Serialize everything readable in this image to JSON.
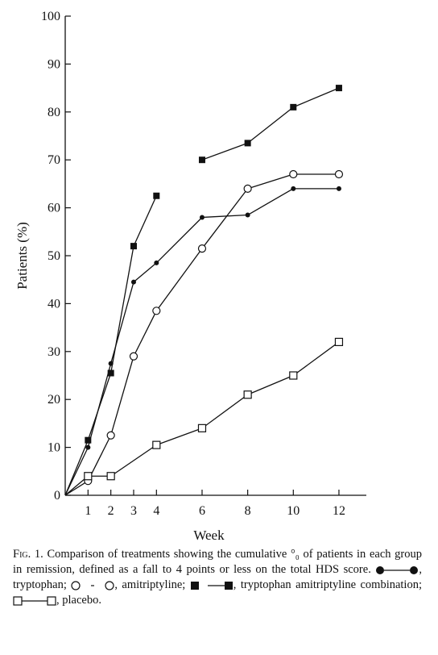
{
  "chart_data": {
    "type": "line",
    "title": "",
    "xlabel": "Week",
    "ylabel": "Patients (%)",
    "xlim": [
      0,
      13.2
    ],
    "ylim": [
      0,
      100
    ],
    "xticks": [
      1,
      2,
      3,
      4,
      6,
      8,
      10,
      12
    ],
    "yticks": [
      0,
      10,
      20,
      30,
      40,
      50,
      60,
      70,
      80,
      90,
      100
    ],
    "grid": false,
    "series": [
      {
        "name": "tryptophan",
        "marker": "filled-circle",
        "color": "#111111",
        "x": [
          0,
          1,
          2,
          3,
          4,
          6,
          8,
          10,
          12
        ],
        "y": [
          0,
          10,
          27.5,
          44.5,
          48.5,
          58,
          58.5,
          64,
          64
        ]
      },
      {
        "name": "amitriptyline",
        "marker": "open-circle",
        "color": "#111111",
        "x": [
          0,
          1,
          2,
          3,
          4,
          6,
          8,
          10,
          12
        ],
        "y": [
          0,
          3,
          12.5,
          29,
          38.5,
          51.5,
          64,
          67,
          67
        ]
      },
      {
        "name": "tryptophan amitriptyline combination",
        "marker": "filled-square",
        "color": "#111111",
        "x": [
          0,
          1,
          2,
          3,
          4,
          6,
          8,
          10,
          12
        ],
        "y": [
          0,
          11.5,
          25.5,
          52,
          62.5,
          70,
          73.5,
          81,
          85
        ],
        "gaps_after_index": [
          4
        ]
      },
      {
        "name": "placebo",
        "marker": "open-square",
        "color": "#111111",
        "x": [
          0,
          1,
          2,
          4,
          6,
          8,
          10,
          12
        ],
        "y": [
          0,
          4,
          4,
          10.5,
          14,
          21,
          25,
          32
        ]
      }
    ]
  },
  "caption": {
    "fig_label": "Fig. 1.",
    "text_1": "Comparison of treatments showing the cumulative °₀ of patients in each group in remission, defined as a fall to 4 points or less on the total HDS score.",
    "label_1": ", tryptophan;",
    "label_2": ", amitriptyline;",
    "label_3": ", tryptophan amitriptyline combination;",
    "label_4": ", placebo."
  }
}
